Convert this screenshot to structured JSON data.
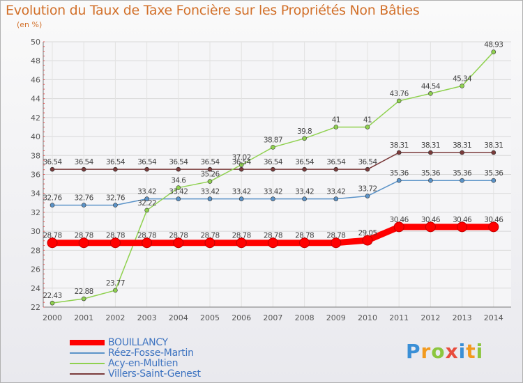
{
  "chart_data": {
    "type": "line",
    "title": "Evolution du Taux de Taxe Foncière sur les Propriétés Non Bâties",
    "ylabel": "(en %)",
    "xlabel": "",
    "categories": [
      "2000",
      "2001",
      "2002",
      "2003",
      "2004",
      "2005",
      "2006",
      "2007",
      "2008",
      "2009",
      "2010",
      "2011",
      "2012",
      "2013",
      "2014"
    ],
    "yticks": [
      22,
      24,
      26,
      28,
      30,
      32,
      34,
      36,
      38,
      40,
      42,
      44,
      46,
      48,
      50
    ],
    "ylim": [
      22,
      50
    ],
    "series": [
      {
        "name": "BOUILLANCY",
        "color": "#ff0000",
        "values": [
          28.78,
          28.78,
          28.78,
          28.78,
          28.78,
          28.78,
          28.78,
          28.78,
          28.78,
          28.78,
          29.05,
          30.46,
          30.46,
          30.46,
          30.46
        ],
        "labels": [
          "28.78",
          "28.78",
          "28.78",
          "28.78",
          "28.78",
          "28.78",
          "28.78",
          "28.78",
          "28.78",
          "28.78",
          "29.05",
          "30.46",
          "30.46",
          "30.46",
          "30.46"
        ]
      },
      {
        "name": "Réez-Fosse-Martin",
        "color": "#5b93c8",
        "values": [
          32.76,
          32.76,
          32.76,
          33.42,
          33.42,
          33.42,
          33.42,
          33.42,
          33.42,
          33.42,
          33.72,
          35.36,
          35.36,
          35.36,
          35.36
        ],
        "labels": [
          "32.76",
          "32.76",
          "32.76",
          "33.42",
          "33.42",
          "33.42",
          "33.42",
          "33.42",
          "33.42",
          "33.42",
          "33.72",
          "35.36",
          "35.36",
          "35.36",
          "35.36"
        ]
      },
      {
        "name": "Acy-en-Multien",
        "color": "#8fd14f",
        "values": [
          22.43,
          22.88,
          23.77,
          32.22,
          34.6,
          35.26,
          37.02,
          38.87,
          39.8,
          41,
          41,
          43.76,
          44.54,
          45.34,
          48.93
        ],
        "labels": [
          "22.43",
          "22.88",
          "23.77",
          "32.22",
          "34.6",
          "35.26",
          "37.02",
          "38.87",
          "39.8",
          "41",
          "41",
          "43.76",
          "44.54",
          "45.34",
          "48.93"
        ]
      },
      {
        "name": "Villers-Saint-Genest",
        "color": "#7a3b3b",
        "values": [
          36.54,
          36.54,
          36.54,
          36.54,
          36.54,
          36.54,
          36.54,
          36.54,
          36.54,
          36.54,
          36.54,
          38.31,
          38.31,
          38.31,
          38.31
        ],
        "labels": [
          "36.54",
          "36.54",
          "36.54",
          "36.54",
          "36.54",
          "36.54",
          "36.54",
          "36.54",
          "36.54",
          "36.54",
          "36.54",
          "38.31",
          "38.31",
          "38.31",
          "38.31"
        ]
      }
    ],
    "grid": true,
    "legend": "bottom-left"
  },
  "legend_items": [
    "BOUILLANCY",
    "Réez-Fosse-Martin",
    "Acy-en-Multien",
    "Villers-Saint-Genest"
  ],
  "logo": {
    "letters": [
      "P",
      "r",
      "o",
      "x",
      "i",
      "t",
      "i"
    ],
    "colors": [
      "#3a8fd6",
      "#f29a1e",
      "#8cc63f",
      "#e84c3d",
      "#3a8fd6",
      "#f29a1e",
      "#8cc63f"
    ]
  }
}
